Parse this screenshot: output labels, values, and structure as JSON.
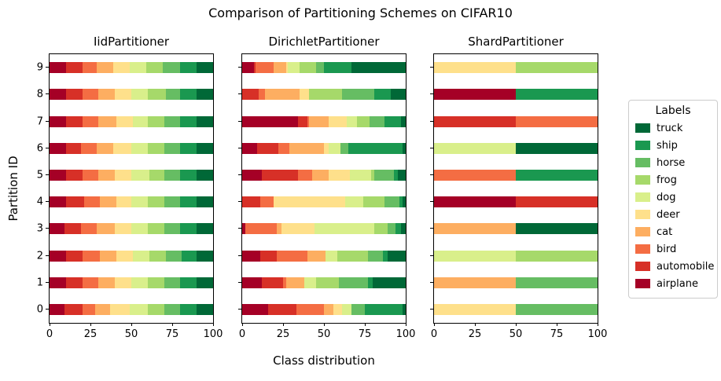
{
  "suptitle": "Comparison of Partitioning Schemes on CIFAR10",
  "xlabel": "Class distribution",
  "ylabel": "Partition ID",
  "x_ticks": [
    0,
    25,
    50,
    75,
    100
  ],
  "y_ticks": [
    "9",
    "8",
    "7",
    "6",
    "5",
    "4",
    "3",
    "2",
    "1",
    "0"
  ],
  "class_order": [
    "airplane",
    "automobile",
    "bird",
    "cat",
    "deer",
    "dog",
    "frog",
    "horse",
    "ship",
    "truck"
  ],
  "class_colors": {
    "airplane": "#a50026",
    "automobile": "#d73027",
    "bird": "#f46d43",
    "cat": "#fdae61",
    "deer": "#fee08b",
    "dog": "#d9ef8b",
    "frog": "#a6d96a",
    "horse": "#66bd63",
    "ship": "#1a9850",
    "truck": "#006837"
  },
  "legend": {
    "title": "Labels",
    "entries": [
      {
        "label": "truck",
        "color": "#006837"
      },
      {
        "label": "ship",
        "color": "#1a9850"
      },
      {
        "label": "horse",
        "color": "#66bd63"
      },
      {
        "label": "frog",
        "color": "#a6d96a"
      },
      {
        "label": "dog",
        "color": "#d9ef8b"
      },
      {
        "label": "deer",
        "color": "#fee08b"
      },
      {
        "label": "cat",
        "color": "#fdae61"
      },
      {
        "label": "bird",
        "color": "#f46d43"
      },
      {
        "label": "automobile",
        "color": "#d73027"
      },
      {
        "label": "airplane",
        "color": "#a50026"
      }
    ]
  },
  "chart_data": [
    {
      "type": "bar",
      "orientation": "horizontal",
      "stacked": true,
      "title": "IidPartitioner",
      "xlim": [
        0,
        100
      ],
      "xlabel_shared": "Class distribution",
      "ylabel_shared": "Partition ID",
      "values_order": "airplane,automobile,bird,cat,deer,dog,frog,horse,ship,truck",
      "partitions": [
        {
          "id": 0,
          "values": [
            9,
            11,
            8,
            9,
            12,
            11,
            10,
            10,
            10,
            10
          ]
        },
        {
          "id": 1,
          "values": [
            10,
            10,
            10,
            10,
            10,
            10,
            10,
            10,
            10,
            10
          ]
        },
        {
          "id": 2,
          "values": [
            10,
            10,
            11,
            10,
            10,
            10,
            10,
            10,
            9,
            10
          ]
        },
        {
          "id": 3,
          "values": [
            9,
            10,
            10,
            11,
            10,
            10,
            10,
            10,
            10,
            10
          ]
        },
        {
          "id": 4,
          "values": [
            10,
            11,
            10,
            10,
            9,
            10,
            10,
            10,
            10,
            10
          ]
        },
        {
          "id": 5,
          "values": [
            10,
            10,
            10,
            10,
            10,
            11,
            9,
            10,
            10,
            10
          ]
        },
        {
          "id": 6,
          "values": [
            10,
            9,
            10,
            10,
            11,
            10,
            10,
            10,
            10,
            10
          ]
        },
        {
          "id": 7,
          "values": [
            10,
            10,
            10,
            11,
            10,
            9,
            10,
            10,
            10,
            10
          ]
        },
        {
          "id": 8,
          "values": [
            10,
            10,
            10,
            10,
            10,
            10,
            11,
            9,
            10,
            10
          ]
        },
        {
          "id": 9,
          "values": [
            10,
            10,
            9,
            10,
            10,
            10,
            10,
            11,
            10,
            10
          ]
        }
      ]
    },
    {
      "type": "bar",
      "orientation": "horizontal",
      "stacked": true,
      "title": "DirichletPartitioner",
      "xlim": [
        0,
        100
      ],
      "values_order": "airplane,automobile,bird,cat,deer,dog,frog,horse,ship,truck",
      "partitions": [
        {
          "id": 0,
          "values": [
            16,
            17,
            17,
            6,
            5,
            6,
            0,
            8,
            23,
            2
          ]
        },
        {
          "id": 1,
          "values": [
            12,
            13,
            2,
            11,
            0,
            7,
            14,
            18,
            3,
            20
          ]
        },
        {
          "id": 2,
          "values": [
            11,
            10,
            19,
            11,
            0,
            7,
            19,
            9,
            3,
            11
          ]
        },
        {
          "id": 3,
          "values": [
            2,
            0,
            19,
            3,
            20,
            37,
            8,
            5,
            3,
            3
          ]
        },
        {
          "id": 4,
          "values": [
            0,
            11,
            8,
            0,
            44,
            11,
            13,
            9,
            2,
            2
          ]
        },
        {
          "id": 5,
          "values": [
            12,
            22,
            9,
            10,
            13,
            13,
            2,
            12,
            2,
            5
          ]
        },
        {
          "id": 6,
          "values": [
            9,
            13,
            7,
            21,
            3,
            7,
            0,
            5,
            33,
            2
          ]
        },
        {
          "id": 7,
          "values": [
            34,
            6,
            1,
            12,
            11,
            6,
            8,
            9,
            10,
            3
          ]
        },
        {
          "id": 8,
          "values": [
            0,
            10,
            4,
            21,
            6,
            0,
            20,
            20,
            10,
            9
          ]
        },
        {
          "id": 9,
          "values": [
            7,
            1,
            11,
            8,
            1,
            7,
            10,
            5,
            17,
            33
          ]
        }
      ]
    },
    {
      "type": "bar",
      "orientation": "horizontal",
      "stacked": true,
      "title": "ShardPartitioner",
      "xlim": [
        0,
        100
      ],
      "values_order": "airplane,automobile,bird,cat,deer,dog,frog,horse,ship,truck",
      "partitions": [
        {
          "id": 0,
          "values": [
            0,
            0,
            0,
            0,
            50,
            0,
            0,
            50,
            0,
            0
          ]
        },
        {
          "id": 1,
          "values": [
            0,
            0,
            0,
            50,
            0,
            0,
            0,
            50,
            0,
            0
          ]
        },
        {
          "id": 2,
          "values": [
            0,
            0,
            0,
            0,
            0,
            50,
            50,
            0,
            0,
            0
          ]
        },
        {
          "id": 3,
          "values": [
            0,
            0,
            0,
            50,
            0,
            0,
            0,
            0,
            0,
            50
          ]
        },
        {
          "id": 4,
          "values": [
            50,
            50,
            0,
            0,
            0,
            0,
            0,
            0,
            0,
            0
          ]
        },
        {
          "id": 5,
          "values": [
            0,
            0,
            50,
            0,
            0,
            0,
            0,
            0,
            50,
            0
          ]
        },
        {
          "id": 6,
          "values": [
            0,
            0,
            0,
            0,
            0,
            50,
            0,
            0,
            0,
            50
          ]
        },
        {
          "id": 7,
          "values": [
            0,
            50,
            50,
            0,
            0,
            0,
            0,
            0,
            0,
            0
          ]
        },
        {
          "id": 8,
          "values": [
            50,
            0,
            0,
            0,
            0,
            0,
            0,
            0,
            50,
            0
          ]
        },
        {
          "id": 9,
          "values": [
            0,
            0,
            0,
            0,
            50,
            0,
            50,
            0,
            0,
            0
          ]
        }
      ]
    }
  ]
}
